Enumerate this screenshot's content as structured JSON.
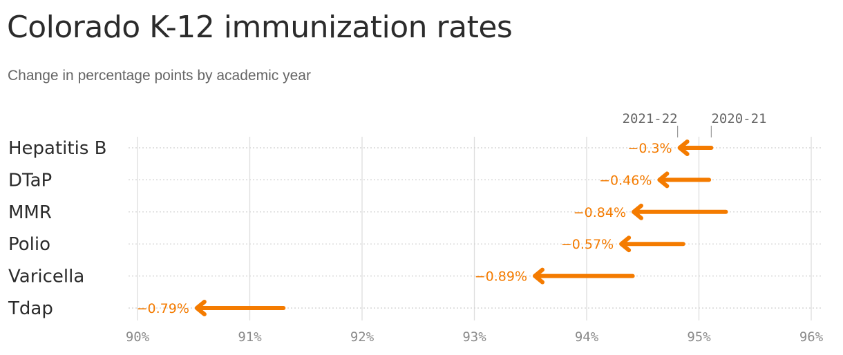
{
  "title": "Colorado K-12 immunization rates",
  "subtitle": "Change in percentage points by academic year",
  "colors": {
    "accent": "#f47b00",
    "grid": "#dddddd",
    "text": "#2b2b2b",
    "muted": "#8a8a8a"
  },
  "chart_data": {
    "type": "arrow-dot",
    "title": "Colorado K-12 immunization rates",
    "subtitle": "Change in percentage points by academic year",
    "xlim": [
      90,
      96
    ],
    "x_ticks": [
      90,
      91,
      92,
      93,
      94,
      95,
      96
    ],
    "tick_labels": [
      "90%",
      "91%",
      "92%",
      "93%",
      "94%",
      "95%",
      "96%"
    ],
    "grid": true,
    "series_labels": {
      "start": "2020-21",
      "end": "2021-22"
    },
    "categories": [
      "Hepatitis B",
      "DTaP",
      "MMR",
      "Polio",
      "Varicella",
      "Tdap"
    ],
    "series": [
      {
        "name": "2020-21",
        "values": [
          95.11,
          95.09,
          95.24,
          94.86,
          94.41,
          91.3
        ]
      },
      {
        "name": "2021-22",
        "values": [
          94.81,
          94.63,
          94.4,
          94.29,
          93.52,
          90.51
        ]
      }
    ],
    "change_labels": [
      "−0.3%",
      "−0.46%",
      "−0.84%",
      "−0.57%",
      "−0.89%",
      "−0.79%"
    ]
  }
}
